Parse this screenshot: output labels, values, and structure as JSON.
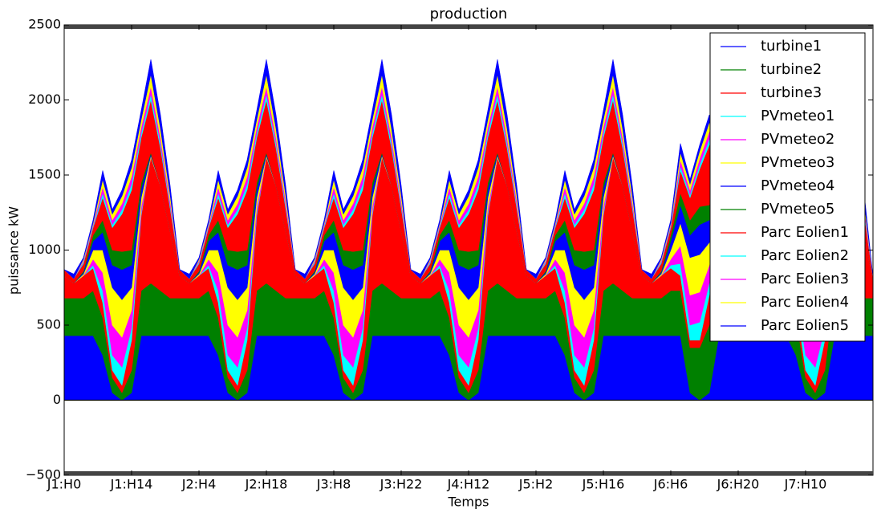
{
  "chart_data": {
    "type": "stacked-area",
    "title": "production",
    "x_label": "Temps",
    "y_label": "puissance kW",
    "xlim": [
      0,
      168
    ],
    "ylim": [
      -500,
      2500
    ],
    "xticks": [
      {
        "value": 0,
        "label": "J1:H0"
      },
      {
        "value": 14,
        "label": "J1:H14"
      },
      {
        "value": 28,
        "label": "J2:H4"
      },
      {
        "value": 42,
        "label": "J2:H18"
      },
      {
        "value": 56,
        "label": "J3:H8"
      },
      {
        "value": 70,
        "label": "J3:H22"
      },
      {
        "value": 84,
        "label": "J4:H12"
      },
      {
        "value": 98,
        "label": "J5:H2"
      },
      {
        "value": 112,
        "label": "J5:H16"
      },
      {
        "value": 126,
        "label": "J6:H6"
      },
      {
        "value": 140,
        "label": "J6:H20"
      },
      {
        "value": 154,
        "label": "J7:H10"
      }
    ],
    "yticks": [
      {
        "value": -500,
        "label": "−500"
      },
      0,
      500,
      1000,
      1500,
      2000,
      2500
    ],
    "legend": "upper right",
    "x": [
      0,
      2,
      4,
      6,
      8,
      10,
      12,
      14,
      16,
      18,
      20,
      22,
      24,
      26,
      28,
      30,
      32,
      34,
      36,
      38,
      40,
      42,
      44,
      46,
      48,
      50,
      52,
      54,
      56,
      58,
      60,
      62,
      64,
      66,
      68,
      70,
      72,
      74,
      76,
      78,
      80,
      82,
      84,
      86,
      88,
      90,
      92,
      94,
      96,
      98,
      100,
      102,
      104,
      106,
      108,
      110,
      112,
      114,
      116,
      118,
      120,
      122,
      124,
      126,
      128,
      130,
      132,
      134,
      136,
      138,
      140,
      142,
      144,
      146,
      148,
      150,
      152,
      154,
      156,
      158,
      160,
      162,
      164,
      166,
      168
    ],
    "series": [
      {
        "name": "turbine1",
        "color": "#0000ff",
        "values": [
          430,
          430,
          430,
          430,
          300,
          50,
          0,
          50,
          430,
          430,
          430,
          430,
          430,
          430,
          430,
          430,
          300,
          50,
          0,
          50,
          430,
          430,
          430,
          430,
          430,
          430,
          430,
          430,
          300,
          50,
          0,
          50,
          430,
          430,
          430,
          430,
          430,
          430,
          430,
          430,
          300,
          50,
          0,
          50,
          430,
          430,
          430,
          430,
          430,
          430,
          430,
          430,
          300,
          50,
          0,
          50,
          430,
          430,
          430,
          430,
          430,
          430,
          430,
          430,
          430,
          50,
          0,
          50,
          430,
          430,
          430,
          430,
          430,
          430,
          430,
          430,
          300,
          50,
          0,
          50,
          430,
          430,
          430,
          430,
          430
        ]
      },
      {
        "name": "turbine2",
        "color": "#008000",
        "values": [
          250,
          250,
          250,
          300,
          250,
          100,
          50,
          150,
          300,
          350,
          300,
          250,
          250,
          250,
          250,
          300,
          250,
          100,
          50,
          150,
          300,
          350,
          300,
          250,
          250,
          250,
          250,
          300,
          250,
          100,
          50,
          150,
          300,
          350,
          300,
          250,
          250,
          250,
          250,
          300,
          250,
          100,
          50,
          150,
          300,
          350,
          300,
          250,
          250,
          250,
          250,
          300,
          250,
          100,
          50,
          150,
          300,
          350,
          300,
          250,
          250,
          250,
          250,
          300,
          300,
          300,
          350,
          450,
          450,
          400,
          300,
          250,
          250,
          250,
          250,
          300,
          250,
          100,
          50,
          150,
          300,
          350,
          300,
          250,
          250
        ]
      },
      {
        "name": "turbine3",
        "color": "#ff0000",
        "values": [
          150,
          100,
          150,
          150,
          100,
          50,
          50,
          200,
          500,
          840,
          700,
          450,
          150,
          100,
          150,
          150,
          100,
          50,
          50,
          200,
          500,
          840,
          700,
          450,
          150,
          100,
          150,
          150,
          100,
          50,
          50,
          200,
          500,
          840,
          700,
          450,
          150,
          100,
          150,
          150,
          100,
          50,
          50,
          200,
          500,
          840,
          700,
          450,
          150,
          100,
          150,
          150,
          100,
          50,
          50,
          200,
          500,
          840,
          700,
          450,
          150,
          100,
          150,
          150,
          100,
          50,
          50,
          200,
          300,
          500,
          500,
          350,
          150,
          100,
          150,
          150,
          100,
          50,
          50,
          200,
          500,
          840,
          700,
          450,
          120
        ]
      },
      {
        "name": "PVmeteo1",
        "color": "#00ffff",
        "values": [
          0,
          0,
          0,
          20,
          80,
          100,
          120,
          80,
          20,
          0,
          0,
          0,
          0,
          0,
          0,
          20,
          80,
          100,
          120,
          80,
          20,
          0,
          0,
          0,
          0,
          0,
          0,
          20,
          80,
          100,
          120,
          80,
          20,
          0,
          0,
          0,
          0,
          0,
          0,
          20,
          80,
          100,
          120,
          80,
          20,
          0,
          0,
          0,
          0,
          0,
          0,
          20,
          80,
          100,
          120,
          80,
          20,
          0,
          0,
          0,
          0,
          0,
          0,
          20,
          80,
          100,
          120,
          80,
          20,
          0,
          0,
          0,
          0,
          0,
          0,
          20,
          80,
          100,
          120,
          80,
          20,
          0,
          0,
          0,
          0
        ]
      },
      {
        "name": "PVmeteo2",
        "color": "#ff00ff",
        "values": [
          0,
          0,
          0,
          40,
          120,
          200,
          200,
          120,
          40,
          0,
          0,
          0,
          0,
          0,
          0,
          40,
          120,
          200,
          200,
          120,
          40,
          0,
          0,
          0,
          0,
          0,
          0,
          40,
          120,
          200,
          200,
          120,
          40,
          0,
          0,
          0,
          0,
          0,
          0,
          40,
          120,
          200,
          200,
          120,
          40,
          0,
          0,
          0,
          0,
          0,
          0,
          40,
          120,
          200,
          200,
          120,
          40,
          0,
          0,
          0,
          0,
          0,
          0,
          40,
          120,
          200,
          200,
          120,
          40,
          0,
          0,
          0,
          0,
          0,
          0,
          40,
          120,
          200,
          200,
          120,
          40,
          0,
          0,
          0,
          0
        ]
      },
      {
        "name": "PVmeteo3",
        "color": "#ffff00",
        "values": [
          0,
          0,
          10,
          60,
          150,
          250,
          250,
          150,
          60,
          10,
          0,
          0,
          0,
          0,
          10,
          60,
          150,
          250,
          250,
          150,
          60,
          10,
          0,
          0,
          0,
          0,
          10,
          60,
          150,
          250,
          250,
          150,
          60,
          10,
          0,
          0,
          0,
          0,
          10,
          60,
          150,
          250,
          250,
          150,
          60,
          10,
          0,
          0,
          0,
          0,
          10,
          60,
          150,
          250,
          250,
          150,
          60,
          10,
          0,
          0,
          0,
          0,
          10,
          60,
          150,
          250,
          250,
          150,
          60,
          10,
          0,
          0,
          0,
          0,
          10,
          60,
          150,
          250,
          250,
          150,
          60,
          10,
          0,
          0,
          0
        ]
      },
      {
        "name": "PVmeteo4",
        "color": "#0000ff",
        "values": [
          0,
          0,
          10,
          60,
          120,
          150,
          200,
          150,
          60,
          10,
          0,
          0,
          0,
          0,
          10,
          60,
          120,
          150,
          200,
          150,
          60,
          10,
          0,
          0,
          0,
          0,
          10,
          60,
          120,
          150,
          200,
          150,
          60,
          10,
          0,
          0,
          0,
          0,
          10,
          60,
          120,
          150,
          200,
          150,
          60,
          10,
          0,
          0,
          0,
          0,
          10,
          60,
          120,
          150,
          200,
          150,
          60,
          10,
          0,
          0,
          0,
          0,
          10,
          60,
          120,
          150,
          200,
          150,
          60,
          10,
          0,
          0,
          0,
          0,
          10,
          60,
          120,
          150,
          200,
          150,
          60,
          10,
          0,
          0,
          0
        ]
      },
      {
        "name": "PVmeteo5",
        "color": "#008000",
        "values": [
          0,
          0,
          10,
          40,
          80,
          100,
          120,
          100,
          40,
          10,
          0,
          0,
          0,
          0,
          10,
          40,
          80,
          100,
          120,
          100,
          40,
          10,
          0,
          0,
          0,
          0,
          10,
          40,
          80,
          100,
          120,
          100,
          40,
          10,
          0,
          0,
          0,
          0,
          10,
          40,
          80,
          100,
          120,
          100,
          40,
          10,
          0,
          0,
          0,
          0,
          10,
          40,
          80,
          100,
          120,
          100,
          40,
          10,
          0,
          0,
          0,
          0,
          10,
          40,
          80,
          100,
          120,
          100,
          40,
          10,
          0,
          0,
          0,
          0,
          10,
          40,
          80,
          100,
          120,
          100,
          40,
          10,
          0,
          0,
          0
        ]
      },
      {
        "name": "Parc Eolien1",
        "color": "#ff0000",
        "values": [
          40,
          30,
          50,
          50,
          150,
          150,
          250,
          400,
          300,
          350,
          250,
          150,
          40,
          30,
          50,
          50,
          150,
          150,
          250,
          400,
          300,
          350,
          250,
          150,
          40,
          30,
          50,
          50,
          150,
          150,
          250,
          400,
          300,
          350,
          250,
          150,
          40,
          30,
          50,
          50,
          150,
          150,
          250,
          400,
          300,
          350,
          250,
          150,
          40,
          30,
          50,
          50,
          150,
          150,
          250,
          400,
          300,
          350,
          250,
          150,
          40,
          30,
          50,
          50,
          150,
          150,
          250,
          400,
          300,
          350,
          250,
          150,
          40,
          30,
          50,
          50,
          150,
          150,
          250,
          400,
          300,
          350,
          250,
          150,
          20
        ]
      },
      {
        "name": "Parc Eolien2",
        "color": "#00ffff",
        "values": [
          0,
          0,
          10,
          10,
          30,
          20,
          30,
          40,
          30,
          40,
          30,
          20,
          0,
          0,
          10,
          10,
          30,
          20,
          30,
          40,
          30,
          40,
          30,
          20,
          0,
          0,
          10,
          10,
          30,
          20,
          30,
          40,
          30,
          40,
          30,
          20,
          0,
          0,
          10,
          10,
          30,
          20,
          30,
          40,
          30,
          40,
          30,
          20,
          0,
          0,
          10,
          10,
          30,
          20,
          30,
          40,
          30,
          40,
          30,
          20,
          0,
          0,
          10,
          10,
          30,
          20,
          30,
          40,
          30,
          40,
          30,
          20,
          0,
          0,
          10,
          10,
          30,
          20,
          30,
          40,
          30,
          40,
          30,
          20,
          0
        ]
      },
      {
        "name": "Parc Eolien3",
        "color": "#ff00ff",
        "values": [
          0,
          0,
          10,
          10,
          40,
          30,
          40,
          50,
          40,
          50,
          40,
          30,
          0,
          0,
          10,
          10,
          40,
          30,
          40,
          50,
          40,
          50,
          40,
          30,
          0,
          0,
          10,
          10,
          40,
          30,
          40,
          50,
          40,
          50,
          40,
          30,
          0,
          0,
          10,
          10,
          40,
          30,
          40,
          50,
          40,
          50,
          40,
          30,
          0,
          0,
          10,
          10,
          40,
          30,
          40,
          50,
          40,
          50,
          40,
          30,
          0,
          0,
          10,
          10,
          40,
          30,
          40,
          50,
          40,
          50,
          40,
          30,
          0,
          0,
          10,
          10,
          40,
          30,
          40,
          50,
          40,
          50,
          40,
          30,
          0
        ]
      },
      {
        "name": "Parc Eolien4",
        "color": "#ffff00",
        "values": [
          0,
          0,
          10,
          10,
          50,
          40,
          50,
          60,
          50,
          80,
          60,
          40,
          0,
          0,
          10,
          10,
          50,
          40,
          50,
          60,
          50,
          80,
          60,
          40,
          0,
          0,
          10,
          10,
          50,
          40,
          50,
          60,
          50,
          80,
          60,
          40,
          0,
          0,
          10,
          10,
          50,
          40,
          50,
          60,
          50,
          80,
          60,
          40,
          0,
          0,
          10,
          10,
          50,
          40,
          50,
          60,
          50,
          80,
          60,
          40,
          0,
          0,
          10,
          10,
          50,
          40,
          50,
          60,
          50,
          80,
          60,
          40,
          0,
          0,
          10,
          10,
          50,
          40,
          50,
          60,
          50,
          80,
          60,
          40,
          0
        ]
      },
      {
        "name": "Parc Eolien5",
        "color": "#0000ff",
        "values": [
          0,
          30,
          10,
          20,
          60,
          30,
          40,
          50,
          60,
          100,
          90,
          60,
          0,
          30,
          10,
          20,
          60,
          30,
          40,
          50,
          60,
          100,
          90,
          60,
          0,
          30,
          10,
          20,
          60,
          30,
          40,
          50,
          60,
          100,
          90,
          60,
          0,
          30,
          10,
          20,
          60,
          30,
          40,
          50,
          60,
          100,
          90,
          60,
          0,
          30,
          10,
          20,
          60,
          30,
          40,
          50,
          60,
          100,
          90,
          60,
          0,
          30,
          10,
          20,
          60,
          30,
          40,
          50,
          60,
          100,
          90,
          60,
          0,
          30,
          10,
          20,
          60,
          30,
          40,
          50,
          60,
          100,
          90,
          60,
          0
        ]
      }
    ]
  }
}
